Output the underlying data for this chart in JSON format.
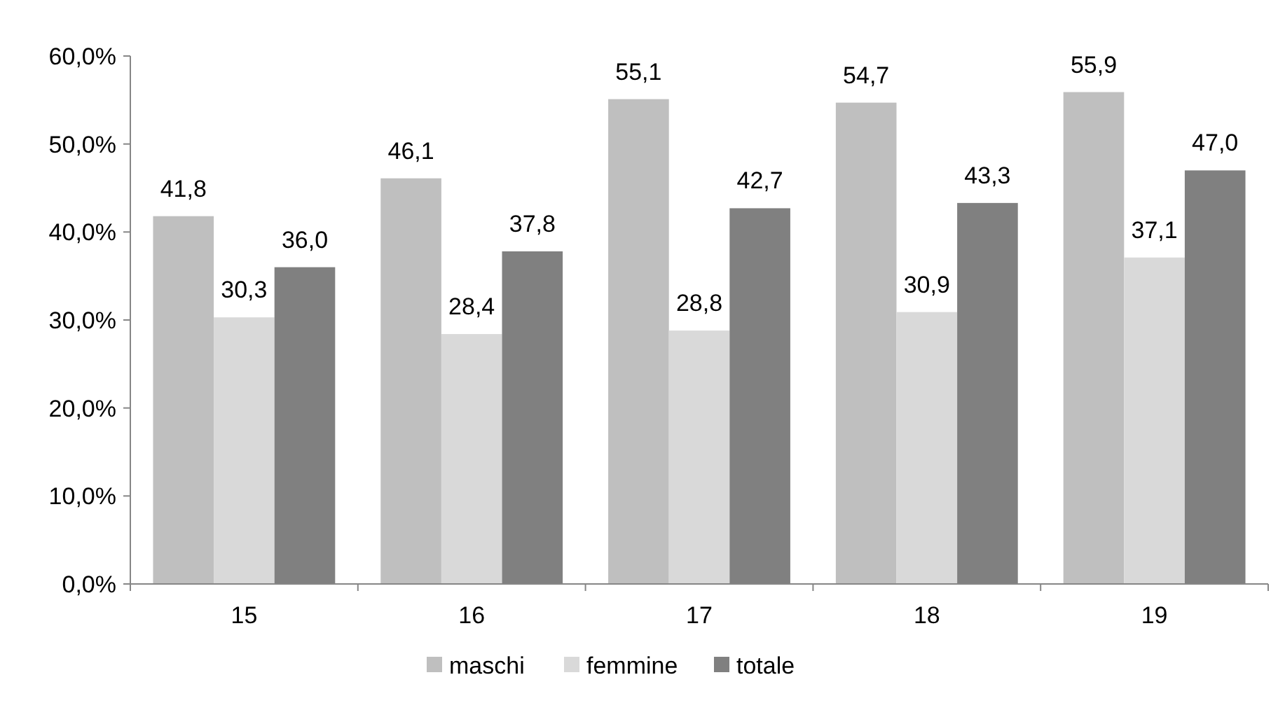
{
  "chart_data": {
    "type": "bar",
    "categories": [
      "15",
      "16",
      "17",
      "18",
      "19"
    ],
    "series": [
      {
        "name": "maschi",
        "color": "#bfbfbf",
        "values": [
          41.8,
          46.1,
          55.1,
          54.7,
          55.9
        ],
        "value_labels": [
          "41,8",
          "46,1",
          "55,1",
          "54,7",
          "55,9"
        ]
      },
      {
        "name": "femmine",
        "color": "#d9d9d9",
        "values": [
          30.3,
          28.4,
          28.8,
          30.9,
          37.1
        ],
        "value_labels": [
          "30,3",
          "28,4",
          "28,8",
          "30,9",
          "37,1"
        ]
      },
      {
        "name": "totale",
        "color": "#808080",
        "values": [
          36.0,
          37.8,
          42.7,
          43.3,
          47.0
        ],
        "value_labels": [
          "36,0",
          "37,8",
          "42,7",
          "43,3",
          "47,0"
        ]
      }
    ],
    "ylim": [
      0,
      60
    ],
    "yticks": [
      {
        "value": 0,
        "label": "0,0%"
      },
      {
        "value": 10,
        "label": "10,0%"
      },
      {
        "value": 20,
        "label": "20,0%"
      },
      {
        "value": 30,
        "label": "30,0%"
      },
      {
        "value": 40,
        "label": "40,0%"
      },
      {
        "value": 50,
        "label": "50,0%"
      },
      {
        "value": 60,
        "label": "60,0%"
      }
    ],
    "grid": false,
    "legend": "bottom"
  }
}
